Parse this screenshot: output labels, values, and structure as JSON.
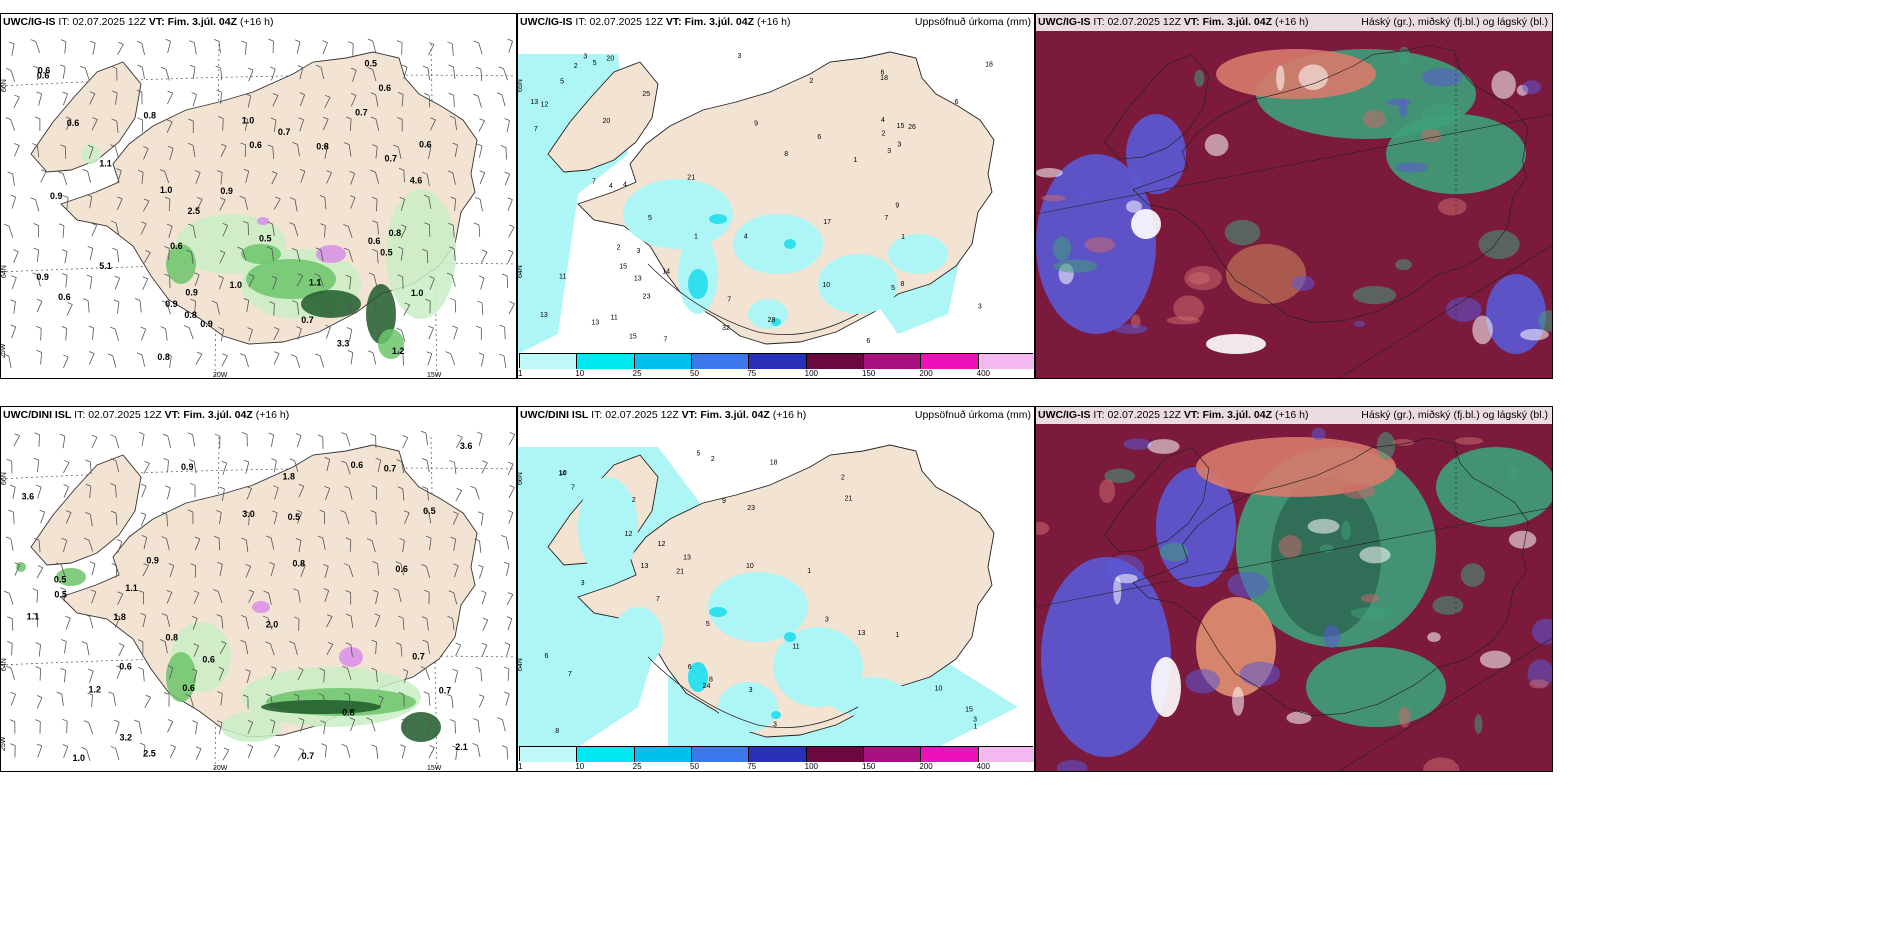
{
  "panels": [
    {
      "id": "r1c1",
      "model": "UWC/IG-IS",
      "it_label": "IT:",
      "it_value": "02.07.2025 12Z",
      "vt_label": "VT:",
      "vt_value": "Fim. 3.júl. 04Z",
      "lead": "(+16 h)",
      "right_title": "",
      "lon_labels": [
        "20W",
        "15W",
        "25W"
      ],
      "lat_labels": [
        "66N",
        "64N"
      ],
      "values": [
        "0.6",
        "0.6",
        "0.7",
        "0.9",
        "0.6",
        "1.2",
        "0.6",
        "0.9",
        "0.7",
        "0.6",
        "0.5",
        "1.0",
        "0.5",
        "1.1",
        "0.8",
        "0.6",
        "0.9",
        "0.6",
        "0.7",
        "0.9",
        "0.6",
        "0.8",
        "1.0",
        "0.5",
        "1.0",
        "0.8",
        "1.0",
        "2.5",
        "4.6",
        "5.1",
        "3.3",
        "0.9",
        "1.1",
        "0.7",
        "0.9",
        "0.8",
        "0.6",
        "0.8"
      ]
    },
    {
      "id": "r1c2",
      "model": "UWC/IG-IS",
      "it_label": "IT:",
      "it_value": "02.07.2025 12Z",
      "vt_label": "VT:",
      "vt_value": "Fim. 3.júl. 04Z",
      "lead": "(+16 h)",
      "right_title": "Uppsöfnuð úrkoma (mm)",
      "lat_labels": [
        "65N",
        "64N"
      ],
      "values": [
        "2",
        "4",
        "3",
        "1",
        "5",
        "7",
        "6",
        "3",
        "13",
        "4",
        "5",
        "6",
        "8",
        "7",
        "6",
        "3",
        "11",
        "6",
        "13",
        "13",
        "18",
        "15",
        "17",
        "20",
        "32",
        "25",
        "18",
        "20",
        "11",
        "13",
        "9",
        "4",
        "2",
        "10",
        "21",
        "28",
        "12",
        "23",
        "15",
        "7",
        "8",
        "3",
        "7",
        "1",
        "2",
        "15",
        "3",
        "4",
        "1",
        "2",
        "5",
        "26",
        "14",
        "3",
        "9",
        "7",
        "5"
      ]
    },
    {
      "id": "r1c3",
      "model": "UWC/IG-IS",
      "it_label": "IT:",
      "it_value": "02.07.2025 12Z",
      "vt_label": "VT:",
      "vt_value": "Fim. 3.júl. 04Z",
      "lead": "(+16 h)",
      "right_title": "Háský (gr.), miðský (fj.bl.) og lágský (bl.)",
      "values": []
    },
    {
      "id": "r2c1",
      "model": "UWC/DINI ISL",
      "it_label": "IT:",
      "it_value": "02.07.2025 12Z",
      "vt_label": "VT:",
      "vt_value": "Fim. 3.júl. 04Z",
      "lead": "(+16 h)",
      "right_title": "",
      "lon_labels": [
        "20W",
        "15W",
        "25W"
      ],
      "lat_labels": [
        "66N",
        "64N"
      ],
      "values": [
        "0.6",
        "0.6",
        "0.7",
        "0.5",
        "0.9",
        "0.7",
        "0.6",
        "0.6",
        "1.2",
        "2.0",
        "0.8",
        "0.5",
        "0.9",
        "3.0",
        "2.1",
        "0.5",
        "3.2",
        "0.6",
        "0.8",
        "0.7",
        "1.0",
        "0.8",
        "0.7",
        "3.6",
        "2.5",
        "3.6",
        "1.8",
        "1.8",
        "1.1",
        "0.5",
        "1.1"
      ]
    },
    {
      "id": "r2c2",
      "model": "UWC/DINI ISL",
      "it_label": "IT:",
      "it_value": "02.07.2025 12Z",
      "vt_label": "VT:",
      "vt_value": "Fim. 3.júl. 04Z",
      "lead": "(+16 h)",
      "right_title": "Uppsöfnuð úrkoma (mm)",
      "lat_labels": [
        "66N",
        "64N"
      ],
      "values": [
        "1",
        "3",
        "3",
        "2",
        "7",
        "8",
        "10",
        "13",
        "11",
        "15",
        "13",
        "18",
        "24",
        "12",
        "13",
        "21",
        "10",
        "14",
        "12",
        "23",
        "21",
        "7",
        "8",
        "6",
        "2",
        "3",
        "10",
        "5",
        "3",
        "6",
        "7",
        "9",
        "5",
        "2",
        "1",
        "1",
        "3"
      ]
    },
    {
      "id": "r2c3",
      "model": "UWC/IG-IS",
      "it_label": "IT:",
      "it_value": "02.07.2025 12Z",
      "vt_label": "VT:",
      "vt_value": "Fim. 3.júl. 04Z",
      "lead": "(+16 h)",
      "right_title": "Háský (gr.), miðský (fj.bl.) og lágský (bl.)",
      "values": []
    }
  ],
  "colorbar": {
    "ticks": [
      "1",
      "10",
      "25",
      "50",
      "75",
      "100",
      "150",
      "200",
      "400"
    ],
    "colors": [
      "#bff8f8",
      "#00e8f0",
      "#00c0ee",
      "#3a78ec",
      "#2830b8",
      "#6a0840",
      "#a81080",
      "#ee10b8",
      "#f4b8f0"
    ]
  },
  "colors": {
    "land": "#f3e3d3",
    "sea": "#ffffff",
    "precip_light": "#c9eec5",
    "precip_mid": "#6cc46a",
    "precip_dark": "#1e5a2a",
    "precip_pink": "#d88ee8",
    "accum_light": "#aef5f5",
    "accum_mid": "#30e0ec",
    "cloud_high": "#7c1a3e",
    "cloud_mid": "#3ea07a",
    "cloud_low": "#5a5ad6"
  }
}
